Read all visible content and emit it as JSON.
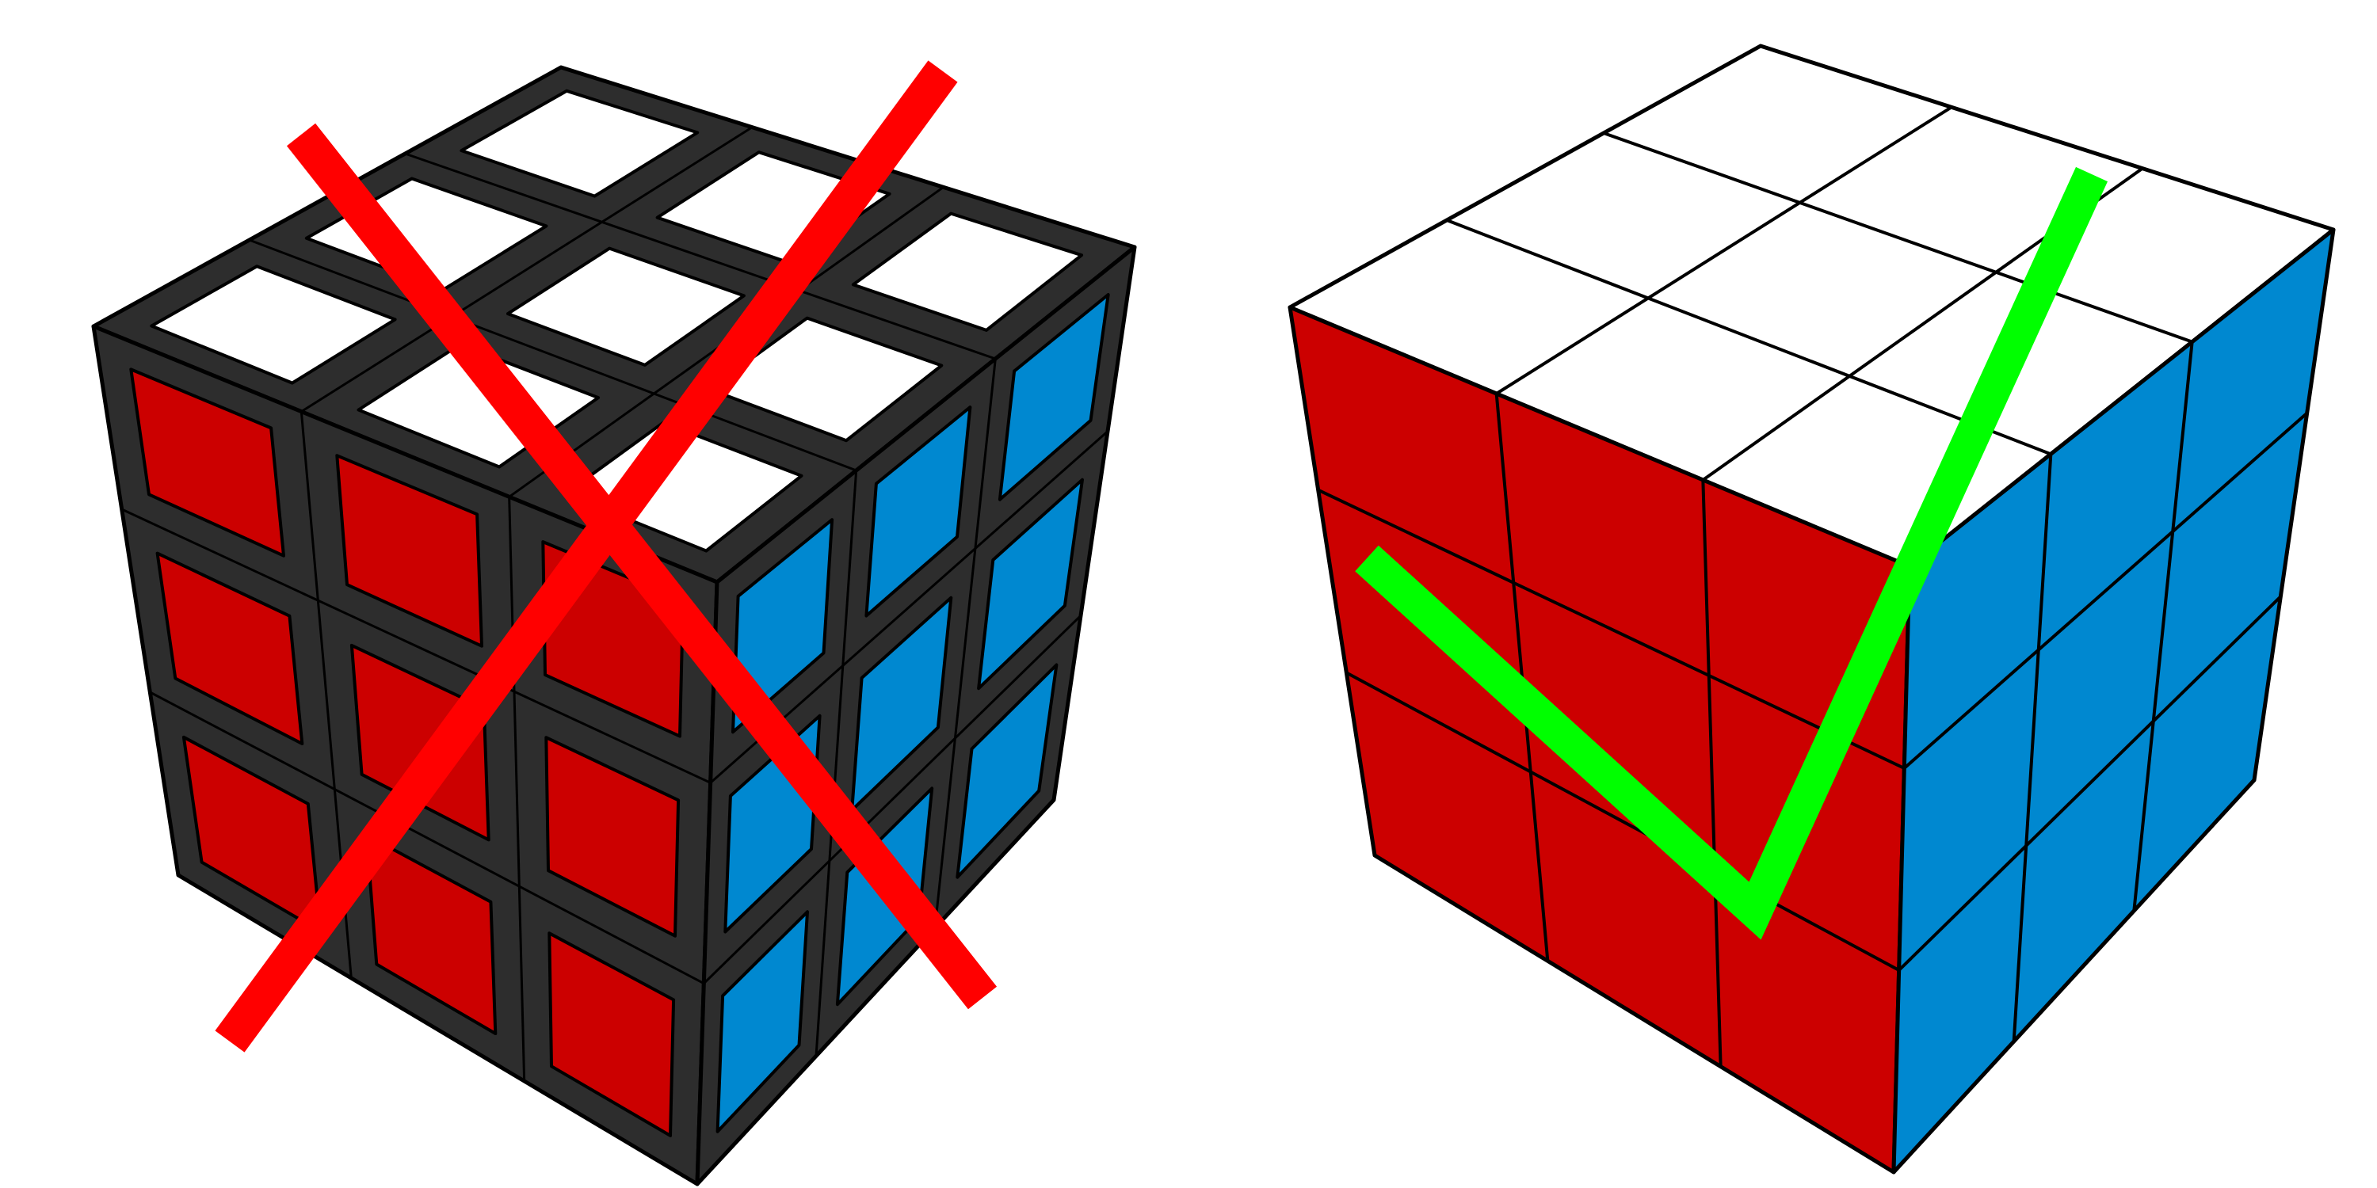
{
  "colors": {
    "background": "#ffffff",
    "top_face": "#ffffff",
    "front_face": "#cc0000",
    "side_face": "#0088d0",
    "plastic_frame": "#2d2d2d",
    "outline": "#000000",
    "cross_mark": "#ff0000",
    "check_mark": "#00ff00"
  },
  "cubes": [
    {
      "style": "stickered",
      "grid": "3x3",
      "visible_faces": [
        "top",
        "front",
        "right"
      ],
      "face_colors": {
        "top": "white",
        "front": "red",
        "right": "blue"
      },
      "mark": "cross-mark",
      "verdict": "incorrect"
    },
    {
      "style": "stickerless",
      "grid": "3x3",
      "visible_faces": [
        "top",
        "front",
        "right"
      ],
      "face_colors": {
        "top": "white",
        "front": "red",
        "right": "blue"
      },
      "mark": "check-mark",
      "verdict": "correct"
    }
  ]
}
